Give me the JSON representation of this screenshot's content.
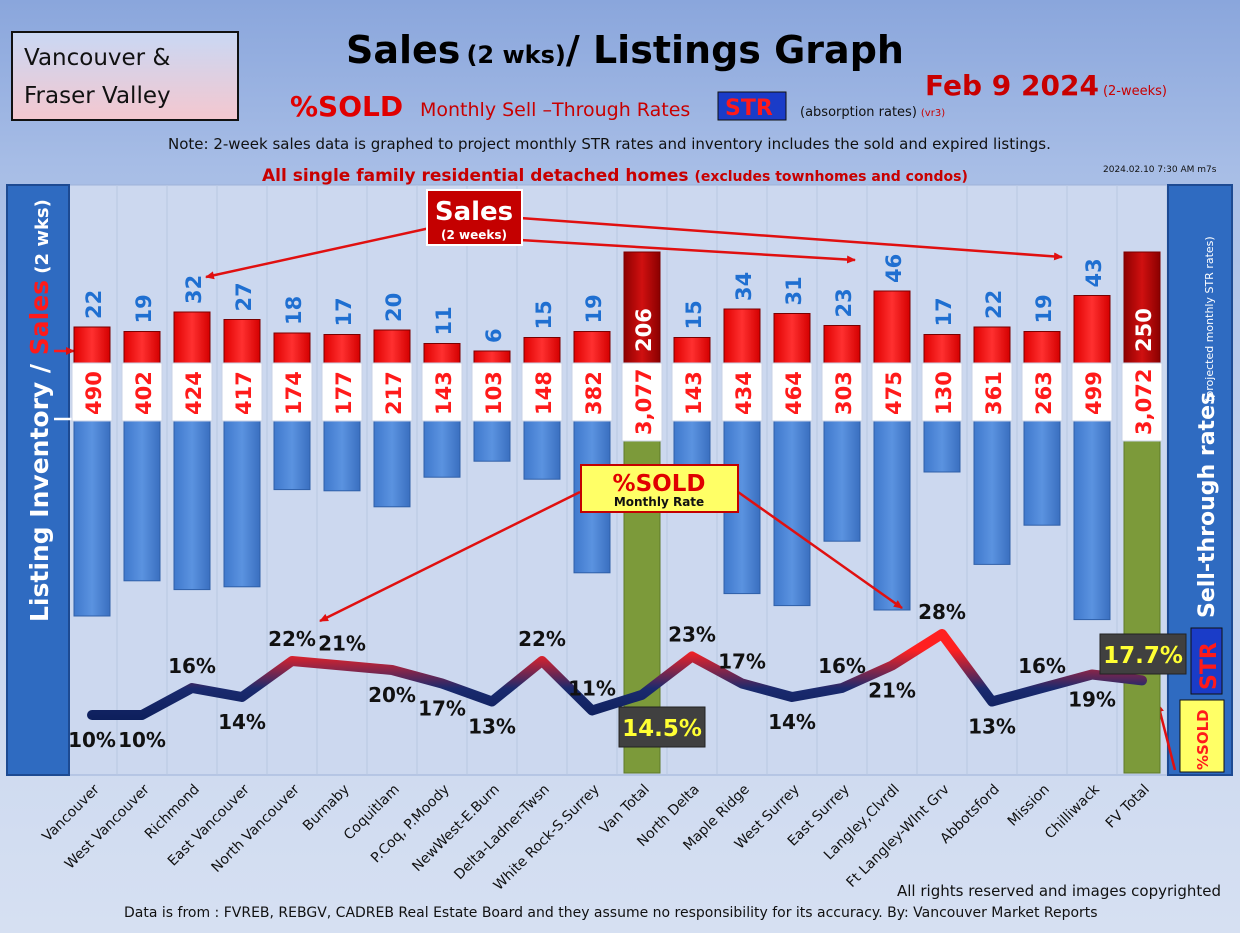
{
  "header": {
    "region_line1": "Vancouver &",
    "region_line2": "Fraser Valley",
    "title_main": "Sales",
    "title_paren": "(2 wks)",
    "title_rest": "/ Listings Graph",
    "date_main": "Feb 9  2024",
    "date_sub": "(2-weeks)",
    "subtitle_sold": "%SOLD",
    "subtitle_mid": "Monthly Sell –Through Rates",
    "subtitle_str": "STR",
    "subtitle_abs": "(absorption rates)",
    "subtitle_ver": "(vr3)",
    "note": "Note: 2-week sales data is graphed to project monthly STR rates and inventory includes the sold and expired listings.",
    "scope_main": "All single family residential detached homes",
    "scope_paren": "(excludes townhomes and condos)",
    "timestamp": "2024.02.10 7:30 AM m7s"
  },
  "left_axis": {
    "part1": "Listing Inventory / ",
    "part2": "Sales",
    "part3": " (2 wks)"
  },
  "right_axis": {
    "label": "Sell-through rates",
    "sub": "(projected monthly STR rates)",
    "str": "STR",
    "sold": "%SOLD"
  },
  "callouts": {
    "sales_title": "Sales",
    "sales_sub": "(2 weeks)",
    "sold_title": "%SOLD",
    "sold_sub": "Monthly Rate"
  },
  "footer": {
    "rights": "All rights reserved and  images copyrighted",
    "source": "Data is from : FVREB, REBGV, CADREB Real Estate Board and they assume no responsibility for its accuracy. By: Vancouver Market Reports"
  },
  "colors": {
    "sales_bar": "#ff1a1a",
    "inventory_bar": "#4f86d6",
    "total_bar": "#7c9a3a",
    "line_low": "#0d1f5c",
    "line_high": "#ff2020",
    "sales_label": "#1f6fd1",
    "inventory_label": "#ff1a1a"
  },
  "chart_data": {
    "type": "bar",
    "categories": [
      "Vancouver",
      "West Vancouver",
      "Richmond",
      "East Vancouver",
      "North Vancouver",
      "Burnaby",
      "Coquitlam",
      "P.Coq, P.Moody",
      "NewWest-E.Burn",
      "Delta-Ladner-Twsn",
      "White Rock-S.Surrey",
      "Van Total",
      "North Delta",
      "Maple Ridge",
      "West Surrey",
      "East Surrey",
      "Langley,Clvrdl",
      "Ft Langley-Wlnt Grv",
      "Abbotsford",
      "Mission",
      "Chilliwack",
      "FV Total"
    ],
    "totals": [
      false,
      false,
      false,
      false,
      false,
      false,
      false,
      false,
      false,
      false,
      false,
      true,
      false,
      false,
      false,
      false,
      false,
      false,
      false,
      false,
      false,
      true
    ],
    "series": [
      {
        "name": "Sales",
        "values": [
          22,
          19,
          32,
          27,
          18,
          17,
          20,
          11,
          6,
          15,
          19,
          206,
          15,
          34,
          31,
          23,
          46,
          17,
          22,
          19,
          43,
          250
        ],
        "labels": [
          "22",
          "19",
          "32",
          "27",
          "18",
          "17",
          "20",
          "11",
          "6",
          "15",
          "19",
          "206",
          "15",
          "34",
          "31",
          "23",
          "46",
          "17",
          "22",
          "19",
          "43",
          "250"
        ]
      },
      {
        "name": "Listing Inventory",
        "values": [
          490,
          402,
          424,
          417,
          174,
          177,
          217,
          143,
          103,
          148,
          382,
          3077,
          143,
          434,
          464,
          303,
          475,
          130,
          361,
          263,
          499,
          3072
        ],
        "labels": [
          "490",
          "402",
          "424",
          "417",
          "174",
          "177",
          "217",
          "143",
          "103",
          "148",
          "382",
          "3,077",
          "143",
          "434",
          "464",
          "303",
          "475",
          "130",
          "361",
          "263",
          "499",
          "3,072"
        ]
      },
      {
        "name": "%SOLD",
        "values": [
          10,
          10,
          16,
          14,
          22,
          21,
          20,
          17,
          13,
          22,
          11,
          14.5,
          23,
          17,
          14,
          16,
          21,
          28,
          13,
          16,
          19,
          17.7
        ],
        "labels": [
          "10%",
          "10%",
          "16%",
          "14%",
          "22%",
          "21%",
          "20%",
          "17%",
          "13%",
          "22%",
          "11%",
          "14.5%",
          "23%",
          "17%",
          "14%",
          "16%",
          "21%",
          "28%",
          "13%",
          "16%",
          "19%",
          "17.7%"
        ]
      }
    ]
  }
}
